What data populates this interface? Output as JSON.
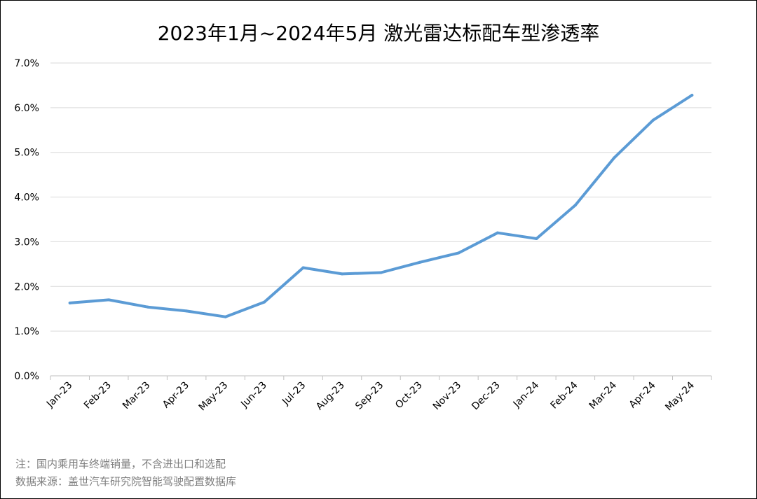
{
  "chart_data": {
    "type": "line",
    "title": "2023年1月~2024年5月 激光雷达标配车型渗透率",
    "categories": [
      "Jan-23",
      "Feb-23",
      "Mar-23",
      "Apr-23",
      "May-23",
      "Jun-23",
      "Jul-23",
      "Aug-23",
      "Sep-23",
      "Oct-23",
      "Nov-23",
      "Dec-23",
      "Jan-24",
      "Feb-24",
      "Mar-24",
      "Apr-24",
      "May-24"
    ],
    "series": [
      {
        "values": [
          1.63,
          1.7,
          1.54,
          1.45,
          1.32,
          1.65,
          2.42,
          2.28,
          2.31,
          2.54,
          2.75,
          3.2,
          3.07,
          3.82,
          4.88,
          5.72,
          6.28
        ]
      }
    ],
    "y_unit": "%",
    "ylim": [
      0,
      7
    ],
    "yticks": [
      "0.0%",
      "1.0%",
      "2.0%",
      "3.0%",
      "4.0%",
      "5.0%",
      "6.0%",
      "7.0%"
    ],
    "grid": true,
    "line_color": "#5b9bd5"
  },
  "notes": {
    "line1": "注：国内乘用车终端销量，不含进出口和选配",
    "line2": "数据来源：盖世汽车研究院智能驾驶配置数据库"
  }
}
